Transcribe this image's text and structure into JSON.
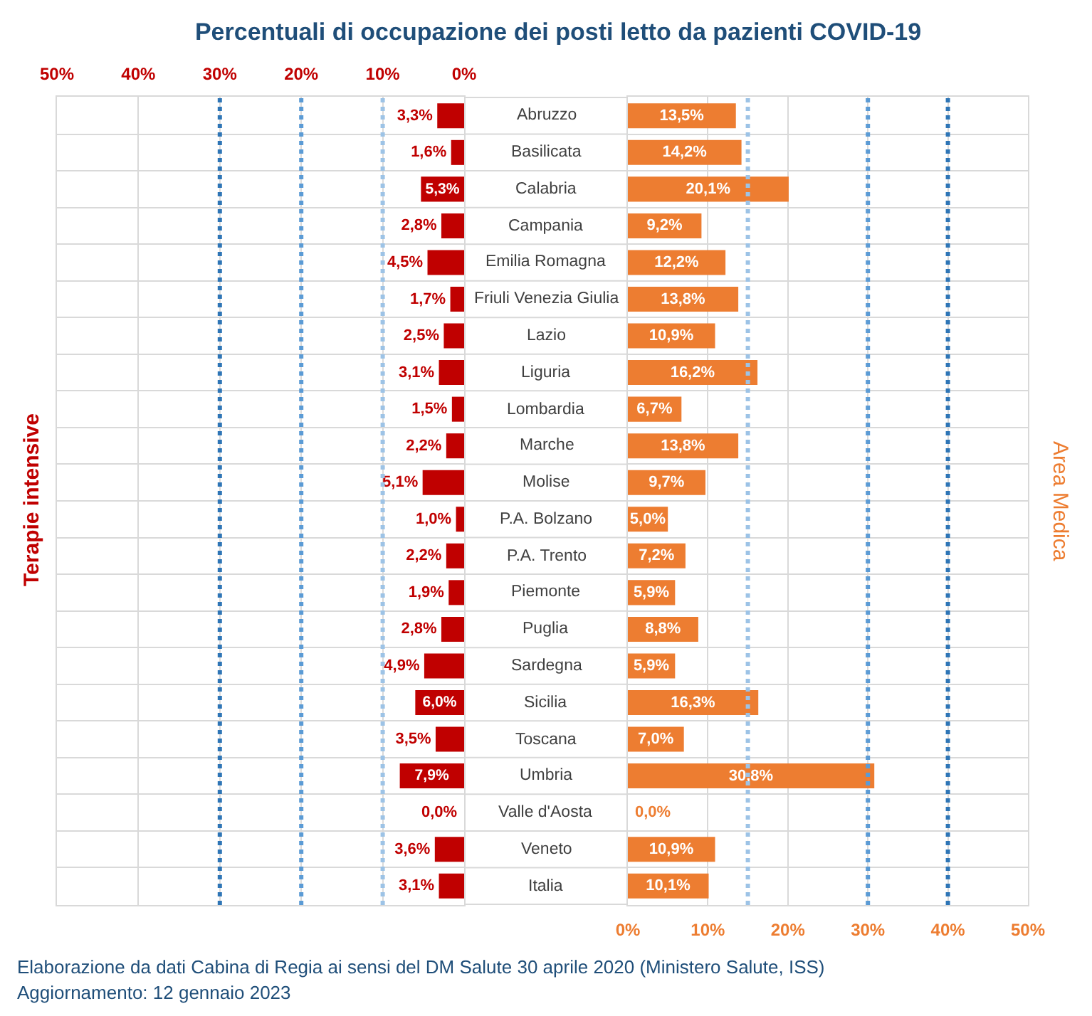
{
  "chart_data": [
    {
      "type": "bar",
      "orientation": "horizontal",
      "title": "Percentuali di occupazione dei posti letto da pazienti COVID-19",
      "categories": [
        "Abruzzo",
        "Basilicata",
        "Calabria",
        "Campania",
        "Emilia Romagna",
        "Friuli Venezia Giulia",
        "Lazio",
        "Liguria",
        "Lombardia",
        "Marche",
        "Molise",
        "P.A. Bolzano",
        "P.A. Trento",
        "Piemonte",
        "Puglia",
        "Sardegna",
        "Sicilia",
        "Toscana",
        "Umbria",
        "Valle d'Aosta",
        "Veneto",
        "Italia"
      ],
      "series": [
        {
          "name": "Terapie intensive",
          "color": "#c00000",
          "values": [
            3.3,
            1.6,
            5.3,
            2.8,
            4.5,
            1.7,
            2.5,
            3.1,
            1.5,
            2.2,
            5.1,
            1.0,
            2.2,
            1.9,
            2.8,
            4.9,
            6.0,
            3.5,
            7.9,
            0.0,
            3.6,
            3.1
          ],
          "value_labels": [
            "3,3%",
            "1,6%",
            "5,3%",
            "2,8%",
            "4,5%",
            "1,7%",
            "2,5%",
            "3,1%",
            "1,5%",
            "2,2%",
            "5,1%",
            "1,0%",
            "2,2%",
            "1,9%",
            "2,8%",
            "4,9%",
            "6,0%",
            "3,5%",
            "7,9%",
            "0,0%",
            "3,6%",
            "3,1%"
          ]
        }
      ],
      "xlim": [
        50,
        0
      ],
      "xticks": [
        {
          "value": 50,
          "label": "50%"
        },
        {
          "value": 40,
          "label": "40%"
        },
        {
          "value": 30,
          "label": "30%"
        },
        {
          "value": 20,
          "label": "20%"
        },
        {
          "value": 10,
          "label": "10%"
        },
        {
          "value": 0,
          "label": "0%"
        }
      ],
      "ref_lines": [
        {
          "axis": "x",
          "value": 10,
          "color": "#9dc3e6",
          "line_style": "dotted"
        },
        {
          "axis": "x",
          "value": 20,
          "color": "#5b9bd5",
          "line_style": "dotted"
        },
        {
          "axis": "x",
          "value": 30,
          "color": "#2e75b6",
          "line_style": "dotted"
        }
      ],
      "grid": true,
      "legend": false,
      "tick_labels": "x",
      "annotations": [
        "Elaborazione da dati Cabina di Regia ai sensi del DM Salute 30 aprile 2020 (Ministero Salute, ISS)",
        "Aggiornamento: 12 gennaio 2023"
      ]
    },
    {
      "type": "bar",
      "orientation": "horizontal",
      "categories": [
        "Abruzzo",
        "Basilicata",
        "Calabria",
        "Campania",
        "Emilia Romagna",
        "Friuli Venezia Giulia",
        "Lazio",
        "Liguria",
        "Lombardia",
        "Marche",
        "Molise",
        "P.A. Bolzano",
        "P.A. Trento",
        "Piemonte",
        "Puglia",
        "Sardegna",
        "Sicilia",
        "Toscana",
        "Umbria",
        "Valle d'Aosta",
        "Veneto",
        "Italia"
      ],
      "series": [
        {
          "name": "Area Medica",
          "color": "#ed7d31",
          "values": [
            13.5,
            14.2,
            20.1,
            9.2,
            12.2,
            13.8,
            10.9,
            16.2,
            6.7,
            13.8,
            9.7,
            5.0,
            7.2,
            5.9,
            8.8,
            5.9,
            16.3,
            7.0,
            30.8,
            0.0,
            10.9,
            10.1
          ],
          "value_labels": [
            "13,5%",
            "14,2%",
            "20,1%",
            "9,2%",
            "12,2%",
            "13,8%",
            "10,9%",
            "16,2%",
            "6,7%",
            "13,8%",
            "9,7%",
            "5,0%",
            "7,2%",
            "5,9%",
            "8,8%",
            "5,9%",
            "16,3%",
            "7,0%",
            "30,8%",
            "0,0%",
            "10,9%",
            "10,1%"
          ]
        }
      ],
      "xlim": [
        0,
        50
      ],
      "xticks": [
        {
          "value": 0,
          "label": "0%"
        },
        {
          "value": 10,
          "label": "10%"
        },
        {
          "value": 20,
          "label": "20%"
        },
        {
          "value": 30,
          "label": "30%"
        },
        {
          "value": 40,
          "label": "40%"
        },
        {
          "value": 50,
          "label": "50%"
        }
      ],
      "ref_lines": [
        {
          "axis": "x",
          "value": 15,
          "color": "#9dc3e6",
          "line_style": "dotted"
        },
        {
          "axis": "x",
          "value": 30,
          "color": "#5b9bd5",
          "line_style": "dotted"
        },
        {
          "axis": "x",
          "value": 40,
          "color": "#2e75b6",
          "line_style": "dotted"
        }
      ],
      "grid": true,
      "legend": false
    }
  ]
}
